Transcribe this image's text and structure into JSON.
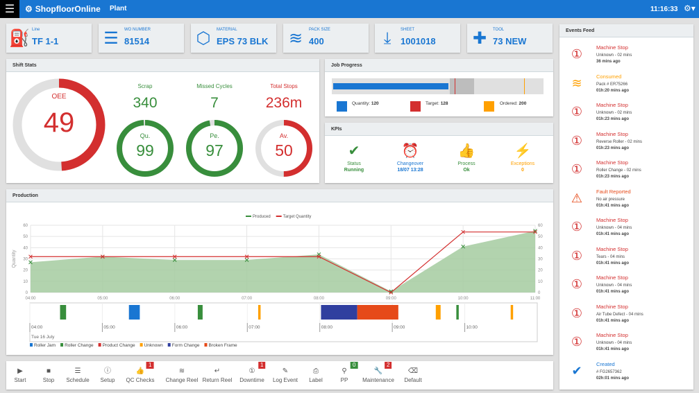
{
  "header": {
    "brand": "ShopfloorOnline",
    "section": "Plant",
    "time": "11:16:33"
  },
  "info_cards": [
    {
      "label": "Line",
      "value": "TF 1-1",
      "icon": "engine-icon"
    },
    {
      "label": "WO NUMBER",
      "value": "81514",
      "icon": "list-icon"
    },
    {
      "label": "MATERIAL",
      "value": "EPS 73 BLK",
      "icon": "cube-icon"
    },
    {
      "label": "PACK SIZE",
      "value": "400",
      "icon": "stack-icon"
    },
    {
      "label": "SHEET",
      "value": "1001018",
      "icon": "download-icon"
    },
    {
      "label": "TOOL",
      "value": "73 NEW",
      "icon": "puzzle-icon"
    }
  ],
  "shift_stats": {
    "title": "Shift Stats",
    "oee": {
      "label": "OEE",
      "value": "49",
      "percent": 49
    },
    "scrap": {
      "label": "Scrap",
      "value": "340"
    },
    "missed": {
      "label": "Missed Cycles",
      "value": "7"
    },
    "stops": {
      "label": "Total Stops",
      "value": "236m"
    },
    "quality": {
      "label": "Qu.",
      "value": "99",
      "percent": 99
    },
    "performance": {
      "label": "Pe.",
      "value": "97",
      "percent": 97
    },
    "availability": {
      "label": "Av.",
      "value": "50",
      "percent": 50
    }
  },
  "job_progress": {
    "title": "Job Progress",
    "quantity": 120,
    "target": 128,
    "ordered": 200,
    "quantity_label": "Quantity:",
    "quantity_value": "120",
    "target_label": "Target:",
    "target_value": "128",
    "ordered_label": "Ordered:",
    "ordered_value": "200"
  },
  "kpis": {
    "title": "KPIs",
    "items": [
      {
        "label": "Status",
        "value": "Running",
        "icon": "check-circle-icon",
        "color": "#388e3c"
      },
      {
        "label": "Changeover",
        "value": "18/07 13:28",
        "icon": "alarm-clock-icon",
        "color": "#1976d2"
      },
      {
        "label": "Process",
        "value": "Ok",
        "icon": "thumbs-up-icon",
        "color": "#388e3c"
      },
      {
        "label": "Exceptions",
        "value": "0",
        "icon": "lightning-icon",
        "color": "#ffa000"
      }
    ]
  },
  "production": {
    "title": "Production",
    "date_label": "Tue 16 July",
    "timeline_ticks": [
      "04:00",
      "05:00",
      "06:00",
      "07:00",
      "08:00",
      "09:00",
      "10:00"
    ],
    "timeline_legend": [
      {
        "name": "Roller Jam",
        "color": "#1976d2"
      },
      {
        "name": "Roller Change",
        "color": "#388e3c"
      },
      {
        "name": "Product Change",
        "color": "#d32f2f"
      },
      {
        "name": "Unknown",
        "color": "#ffa000"
      },
      {
        "name": "Form Change",
        "color": "#303f9f"
      },
      {
        "name": "Broken Frame",
        "color": "#e64a19"
      }
    ],
    "timeline_events": [
      {
        "type": "Roller Change",
        "start": "04:25",
        "end": "04:30"
      },
      {
        "type": "Roller Jam",
        "start": "05:22",
        "end": "05:31"
      },
      {
        "type": "Roller Change",
        "start": "06:19",
        "end": "06:23"
      },
      {
        "type": "Unknown",
        "start": "07:09",
        "end": "07:11"
      },
      {
        "type": "Form Change",
        "start": "08:01",
        "end": "08:31"
      },
      {
        "type": "Broken Frame",
        "start": "08:31",
        "end": "09:05"
      },
      {
        "type": "Unknown",
        "start": "09:36",
        "end": "09:40"
      },
      {
        "type": "Roller Change",
        "start": "09:53",
        "end": "09:55"
      },
      {
        "type": "Unknown",
        "start": "10:38",
        "end": "10:40"
      }
    ]
  },
  "chart_data": {
    "type": "line",
    "x": [
      "04:00",
      "05:00",
      "06:00",
      "07:00",
      "08:00",
      "09:00",
      "10:00",
      "11:00"
    ],
    "series": [
      {
        "name": "Produced",
        "color": "#388e3c",
        "values": [
          27,
          32,
          29,
          29,
          34,
          1,
          41,
          55
        ]
      },
      {
        "name": "Target Quantity",
        "color": "#d32f2f",
        "values": [
          32,
          32,
          32,
          32,
          32,
          0,
          54,
          54
        ]
      }
    ],
    "ylabel": "Quantity",
    "ylim": [
      0,
      60
    ],
    "yticks": [
      0,
      10,
      20,
      30,
      40,
      50,
      60
    ],
    "legend": "top",
    "grid": true
  },
  "toolbar": [
    {
      "label": "Start",
      "icon": "play-icon",
      "g": "▶"
    },
    {
      "label": "Stop",
      "icon": "stop-icon",
      "g": "■"
    },
    {
      "label": "Schedule",
      "icon": "list-icon",
      "g": "☰"
    },
    {
      "label": "Setup",
      "icon": "info-icon",
      "g": "ⓘ"
    },
    {
      "label": "QC Checks",
      "icon": "thumbs-up-icon",
      "g": "👍",
      "badge": "1",
      "badge_color": "#d32f2f"
    },
    {
      "label": "Change Reel",
      "icon": "database-icon",
      "g": "≋"
    },
    {
      "label": "Return Reel",
      "icon": "return-icon",
      "g": "↵"
    },
    {
      "label": "Downtime",
      "icon": "alert-circle-icon",
      "g": "①",
      "badge": "1",
      "badge_color": "#d32f2f"
    },
    {
      "label": "Log Event",
      "icon": "pencil-icon",
      "g": "✎"
    },
    {
      "label": "Label",
      "icon": "printer-icon",
      "g": "⎙"
    },
    {
      "label": "PP",
      "icon": "graph-icon",
      "g": "⚲",
      "badge": "0",
      "badge_color": "#388e3c"
    },
    {
      "label": "Maintenance",
      "icon": "wrench-icon",
      "g": "🔧",
      "badge": "2",
      "badge_color": "#d32f2f"
    },
    {
      "label": "Default",
      "icon": "backspace-icon",
      "g": "⌫"
    }
  ],
  "events": {
    "title": "Events Feed",
    "items": [
      {
        "title": "Machine Stop",
        "detail": "Unknown - 02 mins",
        "ago": "36 mins ago",
        "kind": "stop"
      },
      {
        "title": "Consumed",
        "detail": "Pack # ER75266",
        "ago": "01h:20 mins ago",
        "kind": "consumed"
      },
      {
        "title": "Machine Stop",
        "detail": "Unknown - 02 mins",
        "ago": "01h:23 mins ago",
        "kind": "stop"
      },
      {
        "title": "Machine Stop",
        "detail": "Reverse Roller - 02 mins",
        "ago": "01h:23 mins ago",
        "kind": "stop"
      },
      {
        "title": "Machine Stop",
        "detail": "Roller Change - 02 mins",
        "ago": "01h:23 mins ago",
        "kind": "stop"
      },
      {
        "title": "Fault Reported",
        "detail": "No air pressure",
        "ago": "01h:41 mins ago",
        "kind": "fault"
      },
      {
        "title": "Machine Stop",
        "detail": "Unknown - 04 mins",
        "ago": "01h:41 mins ago",
        "kind": "stop"
      },
      {
        "title": "Machine Stop",
        "detail": "Tears - 04 mins",
        "ago": "01h:41 mins ago",
        "kind": "stop"
      },
      {
        "title": "Machine Stop",
        "detail": "Unknown - 04 mins",
        "ago": "01h:41 mins ago",
        "kind": "stop"
      },
      {
        "title": "Machine Stop",
        "detail": "Air Tube Defect - 04 mins",
        "ago": "01h:41 mins ago",
        "kind": "stop"
      },
      {
        "title": "Machine Stop",
        "detail": "Unknown - 04 mins",
        "ago": "01h:41 mins ago",
        "kind": "stop"
      },
      {
        "title": "Created",
        "detail": "# FG2657362",
        "ago": "02h:01 mins ago",
        "kind": "created"
      }
    ]
  }
}
